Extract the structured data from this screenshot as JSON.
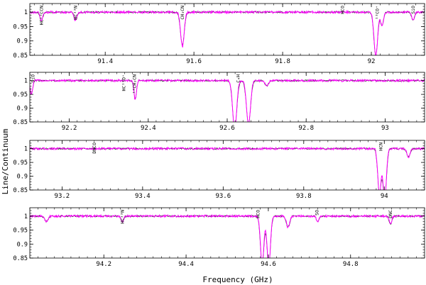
{
  "figure": {
    "xlabel": "Frequency (GHz)",
    "ylabel": "Line/Continuum"
  },
  "chart_data": [
    {
      "type": "line",
      "xlim": [
        91.23,
        92.12
      ],
      "ylim": [
        0.85,
        1.03
      ],
      "yticks": [
        {
          "v": 1,
          "t": "1"
        },
        {
          "v": 0.95,
          "t": "0.95"
        },
        {
          "v": 0.9,
          "t": "0.9"
        },
        {
          "v": 0.85,
          "t": "0.85"
        }
      ],
      "xticks": [
        {
          "v": 91.4,
          "t": "91.4"
        },
        {
          "v": 91.6,
          "t": "91.6"
        },
        {
          "v": 91.8,
          "t": "91.8"
        },
        {
          "v": 92,
          "t": "92"
        }
      ],
      "lines": [
        {
          "x": 91.256,
          "t": "HC¹³CCN"
        },
        {
          "x": 91.333,
          "t": "HC¹³N"
        },
        {
          "x": 91.574,
          "t": "CH₃CN"
        },
        {
          "x": 91.935,
          "t": "HCO"
        },
        {
          "x": 92.013,
          "t": "¹³CO⁺"
        },
        {
          "x": 92.094,
          "t": "SiO"
        }
      ],
      "absorptions": [
        {
          "x": 91.256,
          "d": 0.03,
          "w": 0.003
        },
        {
          "x": 91.333,
          "d": 0.03,
          "w": 0.003
        },
        {
          "x": 91.574,
          "d": 0.12,
          "w": 0.004
        },
        {
          "x": 92.01,
          "d": 0.155,
          "w": 0.004
        },
        {
          "x": 92.024,
          "d": 0.05,
          "w": 0.003
        },
        {
          "x": 92.094,
          "d": 0.03,
          "w": 0.003
        }
      ]
    },
    {
      "type": "line",
      "xlim": [
        92.1,
        93.1
      ],
      "ylim": [
        0.85,
        1.03
      ],
      "yticks": [
        {
          "v": 1,
          "t": "1"
        },
        {
          "v": 0.95,
          "t": "0.95"
        },
        {
          "v": 0.9,
          "t": "0.9"
        },
        {
          "v": 0.85,
          "t": "0.85"
        }
      ],
      "xticks": [
        {
          "v": 92.2,
          "t": "92.2"
        },
        {
          "v": 92.4,
          "t": "92.4"
        },
        {
          "v": 92.6,
          "t": "92.6"
        },
        {
          "v": 92.8,
          "t": "92.8"
        },
        {
          "v": 93,
          "t": "93"
        }
      ],
      "lines": [
        {
          "x": 92.108,
          "t": "SiO"
        },
        {
          "x": 92.338,
          "t": "HC¹⁸O⁺"
        },
        {
          "x": 92.365,
          "t": "¹³CH₃CN"
        },
        {
          "x": 92.627,
          "t": "C₄H"
        }
      ],
      "absorptions": [
        {
          "x": 92.104,
          "d": 0.05,
          "w": 0.003
        },
        {
          "x": 92.367,
          "d": 0.07,
          "w": 0.003
        },
        {
          "x": 92.619,
          "d": 0.18,
          "w": 0.005
        },
        {
          "x": 92.654,
          "d": 0.16,
          "w": 0.005
        },
        {
          "x": 92.7,
          "d": 0.02,
          "w": 0.004
        }
      ]
    },
    {
      "type": "line",
      "xlim": [
        93.12,
        94.1
      ],
      "ylim": [
        0.85,
        1.03
      ],
      "yticks": [
        {
          "v": 1,
          "t": "1"
        },
        {
          "v": 0.95,
          "t": "0.95"
        },
        {
          "v": 0.9,
          "t": "0.9"
        },
        {
          "v": 0.85,
          "t": "0.85"
        }
      ],
      "xticks": [
        {
          "v": 93.2,
          "t": "93.2"
        },
        {
          "v": 93.4,
          "t": "93.4"
        },
        {
          "v": 93.6,
          "t": "93.6"
        },
        {
          "v": 93.8,
          "t": "93.8"
        },
        {
          "v": 94,
          "t": "94"
        }
      ],
      "lines": [
        {
          "x": 93.28,
          "t": "DNCO"
        },
        {
          "x": 93.991,
          "t": "HCN"
        }
      ],
      "absorptions": [
        {
          "x": 93.988,
          "d": 0.17,
          "w": 0.004
        },
        {
          "x": 94.001,
          "d": 0.19,
          "w": 0.004
        },
        {
          "x": 94.06,
          "d": 0.03,
          "w": 0.004
        }
      ]
    },
    {
      "type": "line",
      "xlim": [
        94.02,
        94.98
      ],
      "ylim": [
        0.85,
        1.03
      ],
      "yticks": [
        {
          "v": 1,
          "t": "1"
        },
        {
          "v": 0.95,
          "t": "0.95"
        },
        {
          "v": 0.9,
          "t": "0.9"
        },
        {
          "v": 0.85,
          "t": "0.85"
        }
      ],
      "xticks": [
        {
          "v": 94.2,
          "t": "94.2"
        },
        {
          "v": 94.4,
          "t": "94.4"
        },
        {
          "v": 94.6,
          "t": "94.6"
        },
        {
          "v": 94.8,
          "t": "94.8"
        }
      ],
      "lines": [
        {
          "x": 94.245,
          "t": "HC¹³N"
        },
        {
          "x": 94.575,
          "t": "HCO"
        },
        {
          "x": 94.718,
          "t": "SO"
        },
        {
          "x": 94.897,
          "t": "DNC"
        }
      ],
      "absorptions": [
        {
          "x": 94.06,
          "d": 0.02,
          "w": 0.004
        },
        {
          "x": 94.245,
          "d": 0.02,
          "w": 0.003
        },
        {
          "x": 94.585,
          "d": 0.18,
          "w": 0.004
        },
        {
          "x": 94.601,
          "d": 0.18,
          "w": 0.004
        },
        {
          "x": 94.648,
          "d": 0.04,
          "w": 0.004
        },
        {
          "x": 94.72,
          "d": 0.02,
          "w": 0.003
        },
        {
          "x": 94.897,
          "d": 0.03,
          "w": 0.003
        }
      ]
    }
  ],
  "colors": {
    "model": "#ff00ff",
    "observed": "#222222",
    "axes": "#000000"
  }
}
